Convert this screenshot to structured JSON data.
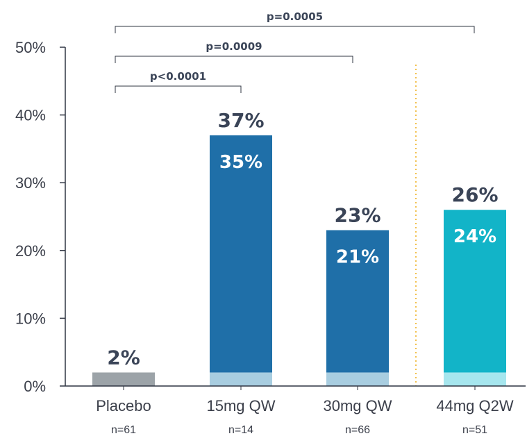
{
  "chart_data": {
    "type": "bar",
    "stacked": true,
    "categories": [
      "Placebo",
      "15mg QW",
      "30mg QW",
      "44mg Q2W"
    ],
    "sample_sizes": [
      "n=61",
      "n=14",
      "n=66",
      "n=51"
    ],
    "series": [
      {
        "values": [
          2,
          2,
          2,
          2
        ]
      },
      {
        "values": [
          0,
          35,
          21,
          24
        ]
      }
    ],
    "totals": [
      2,
      37,
      23,
      26
    ],
    "total_labels": [
      "2%",
      "37%",
      "23%",
      "26%"
    ],
    "inner_labels": [
      "",
      "35%",
      "21%",
      "24%"
    ],
    "ylim": [
      0,
      50
    ],
    "yticks": [
      0,
      10,
      20,
      30,
      40,
      50
    ],
    "ytick_labels": [
      "0%",
      "10%",
      "20%",
      "30%",
      "40%",
      "50%"
    ],
    "xlabel": "",
    "ylabel": "",
    "grid": false,
    "legend": "none",
    "separator": {
      "after_category": 2,
      "style": "dotted",
      "color": "#f2c14e"
    },
    "comparisons": [
      {
        "from": 0,
        "to": 1,
        "label": "p<0.0001"
      },
      {
        "from": 0,
        "to": 2,
        "label": "p=0.0009"
      },
      {
        "from": 0,
        "to": 3,
        "label": "p=0.0005"
      }
    ],
    "colors": {
      "placebo": "#9ca3a8",
      "base_segment": "#a8cde0",
      "base_segment_q2w": "#a6e6ee",
      "qw": "#1f6fa8",
      "q2w": "#12b4c8",
      "axis": "#2f3542",
      "text": "#3a4457"
    }
  }
}
